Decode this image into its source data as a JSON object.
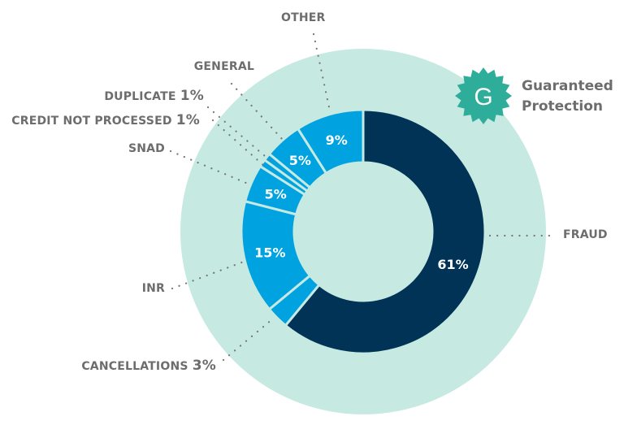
{
  "colors": {
    "background_circle": "#c6e9e2",
    "primary": "#003356",
    "secondary": "#00a3e0",
    "badge": "#2eae9a",
    "label": "#6d6d6d"
  },
  "badge": {
    "icon": "G",
    "line1": "Guaranteed",
    "line2": "Protection"
  },
  "chart_data": {
    "type": "pie",
    "style": "donut",
    "start": "top, clockwise",
    "slices": [
      {
        "name": "FRAUD",
        "value": 61,
        "label": "61%",
        "color": "#003356"
      },
      {
        "name": "CANCELLATIONS",
        "value": 3,
        "label": "3%",
        "color": "#00a3e0"
      },
      {
        "name": "INR",
        "value": 15,
        "label": "15%",
        "color": "#00a3e0"
      },
      {
        "name": "SNAD",
        "value": 5,
        "label": "5%",
        "color": "#00a3e0"
      },
      {
        "name": "CREDIT NOT PROCESSED",
        "value": 1,
        "label": "1%",
        "color": "#00a3e0"
      },
      {
        "name": "DUPLICATE",
        "value": 1,
        "label": "1%",
        "color": "#00a3e0"
      },
      {
        "name": "GENERAL",
        "value": 5,
        "label": "5%",
        "color": "#00a3e0"
      },
      {
        "name": "OTHER",
        "value": 9,
        "label": "9%",
        "color": "#00a3e0"
      }
    ]
  }
}
